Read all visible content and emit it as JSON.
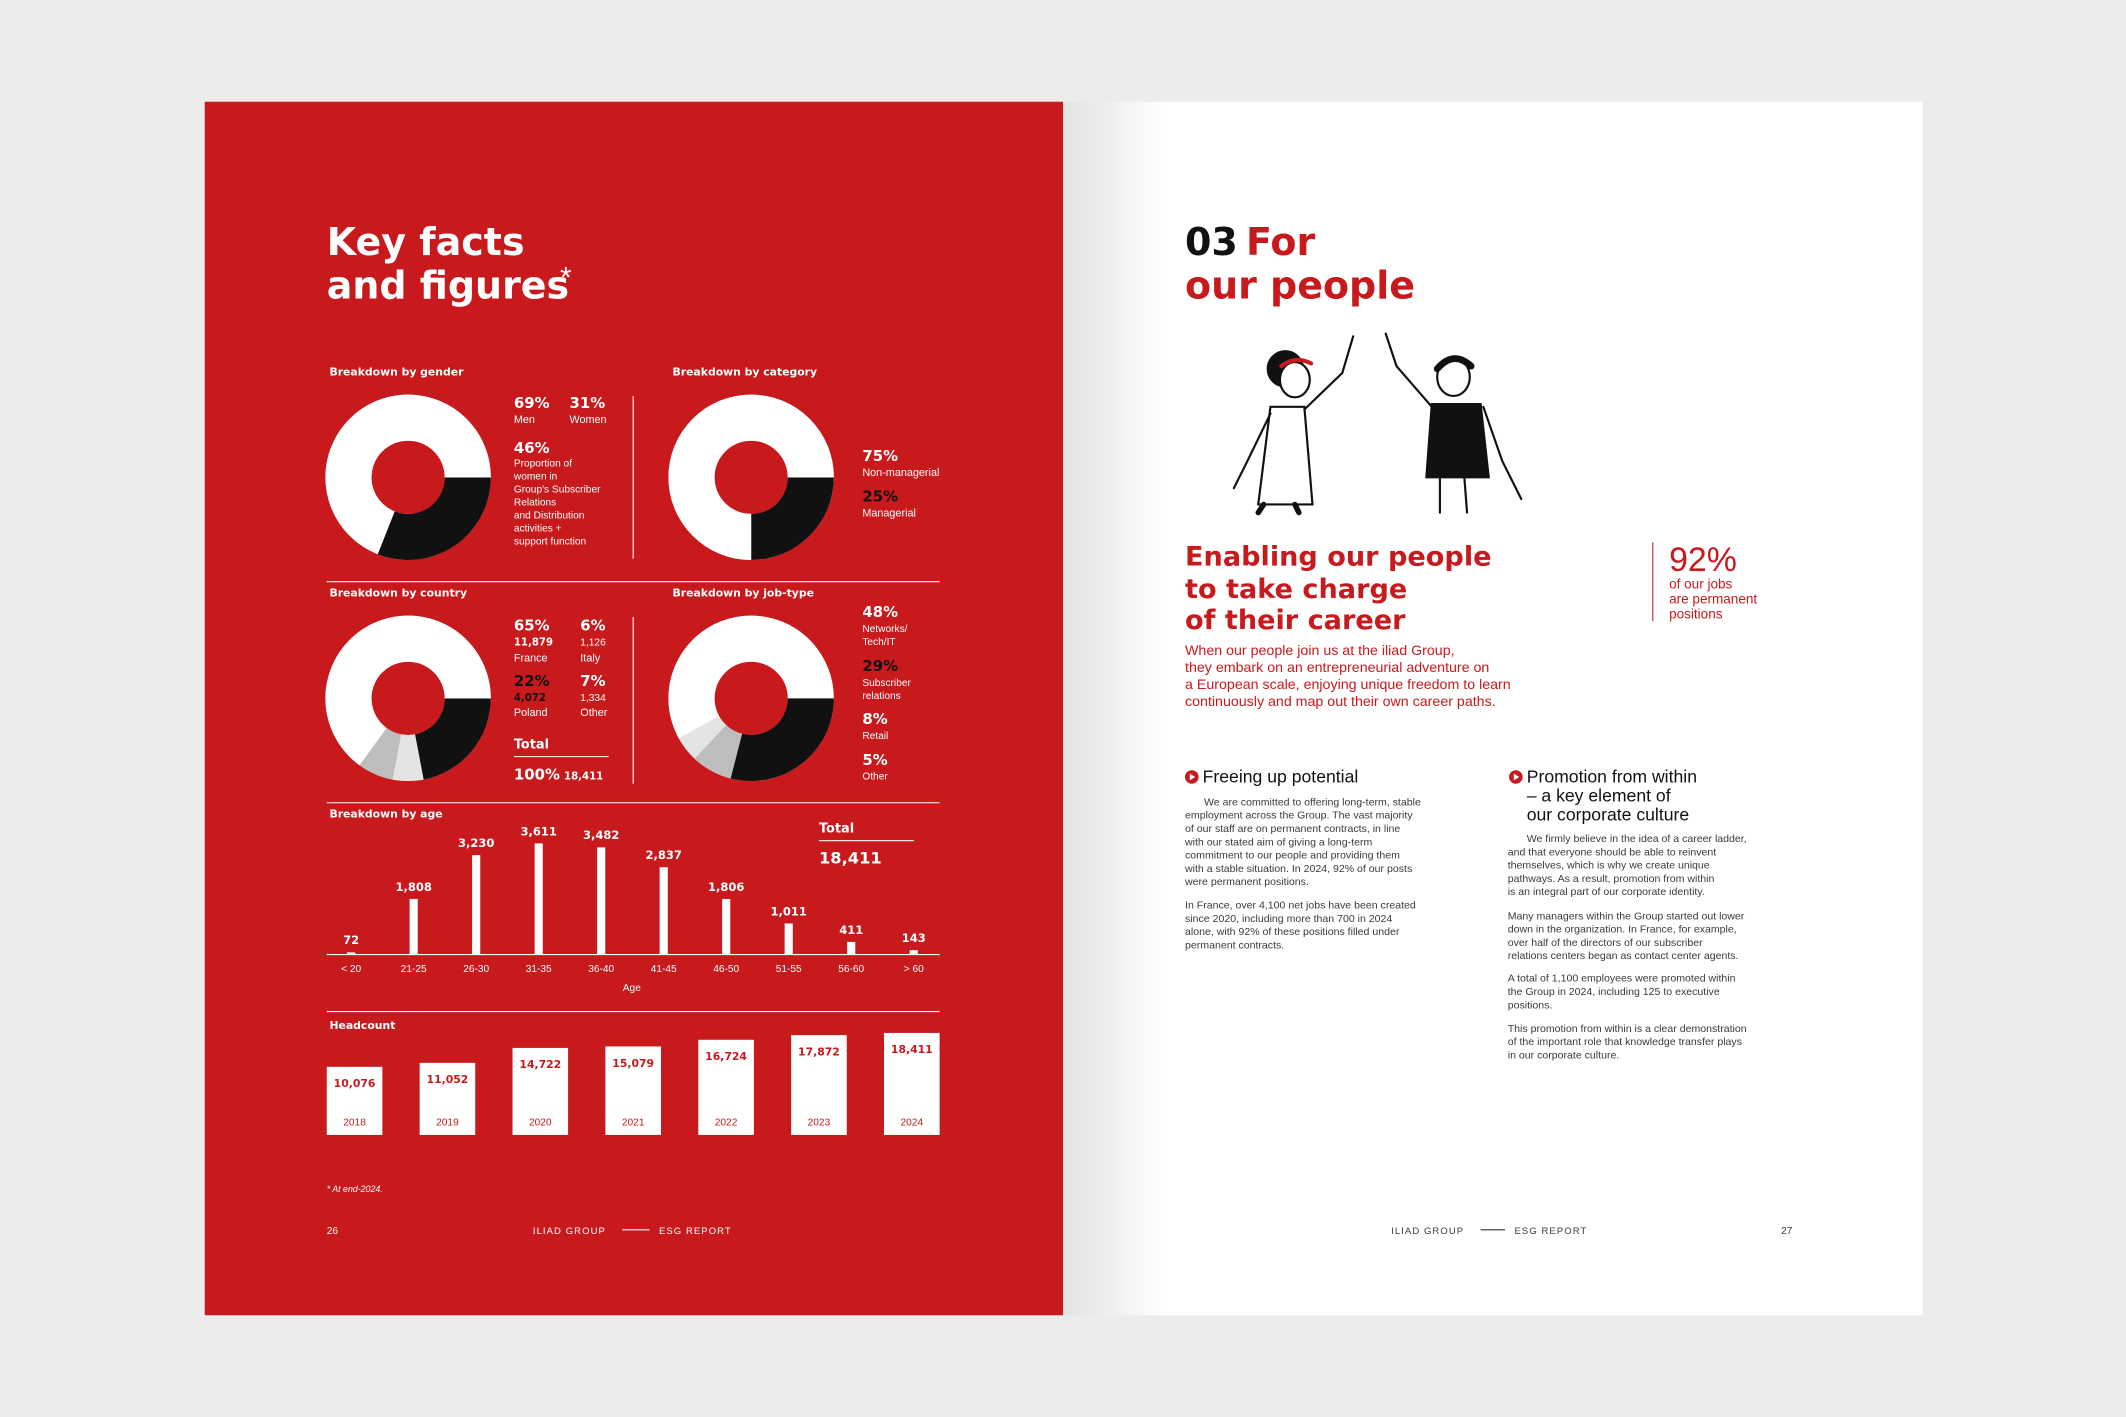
{
  "left_page": {
    "title_lines": [
      "Key facts",
      "and figures"
    ],
    "title_mark": "*",
    "gender": {
      "title": "Breakdown by gender",
      "segments": [
        {
          "name": "Men",
          "value": 69,
          "label": "69%",
          "color": "#ffffff"
        },
        {
          "name": "Women",
          "value": 31,
          "label": "31%",
          "color": "#111111"
        }
      ],
      "note_value": 46,
      "note_label": "46%",
      "note_lines": [
        "Proportion of",
        "women in",
        "Group's Subscriber",
        "Relations",
        "and Distribution",
        "activities +",
        "support function"
      ]
    },
    "category": {
      "title": "Breakdown by category",
      "segments": [
        {
          "name": "Non-managerial",
          "value": 75,
          "label": "75%",
          "color": "#ffffff"
        },
        {
          "name": "Managerial",
          "value": 25,
          "label": "25%",
          "color": "#111111"
        }
      ]
    },
    "country": {
      "title": "Breakdown by country",
      "segments": [
        {
          "name": "France",
          "value": 65,
          "label": "65%",
          "count": "11,879",
          "color": "#ffffff"
        },
        {
          "name": "Italy",
          "value": 6,
          "label": "6%",
          "count": "1,126",
          "color": "#e4e4e4"
        },
        {
          "name": "Poland",
          "value": 22,
          "label": "22%",
          "count": "4,072",
          "color": "#111111"
        },
        {
          "name": "Other",
          "value": 7,
          "label": "7%",
          "count": "1,334",
          "color": "#bdbdbd"
        }
      ],
      "total_title": "Total",
      "total_label": "100%",
      "total_count": "18,411"
    },
    "job_type": {
      "title": "Breakdown by job-type",
      "segments": [
        {
          "name_lines": [
            "Networks/",
            "Tech/IT"
          ],
          "value": 48,
          "label": "48%",
          "color": "#ffffff"
        },
        {
          "name_lines": [
            "Subscriber",
            "relations"
          ],
          "value": 29,
          "label": "29%",
          "color": "#111111"
        },
        {
          "name_lines": [
            "Retail"
          ],
          "value": 8,
          "label": "8%",
          "color": "#bdbdbd"
        },
        {
          "name_lines": [
            "Other"
          ],
          "value": 5,
          "label": "5%",
          "color": "#e4e4e4"
        }
      ]
    },
    "age": {
      "title": "Breakdown by age",
      "categories": [
        "< 20",
        "21-25",
        "26-30",
        "31-35",
        "36-40",
        "41-45",
        "46-50",
        "51-55",
        "56-60",
        "> 60"
      ],
      "values": [
        72,
        1808,
        3230,
        3611,
        3482,
        2837,
        1806,
        1011,
        411,
        143
      ],
      "value_labels": [
        "72",
        "1,808",
        "3,230",
        "3,611",
        "3,482",
        "2,837",
        "1,806",
        "1,011",
        "411",
        "143"
      ],
      "x_label": "Age",
      "total_title": "Total",
      "total_label": "18,411"
    },
    "headcount": {
      "title": "Headcount",
      "categories": [
        "2018",
        "2019",
        "2020",
        "2021",
        "2022",
        "2023",
        "2024"
      ],
      "values": [
        10076,
        11052,
        14722,
        15079,
        16724,
        17872,
        18411
      ],
      "value_labels": [
        "10,076",
        "11,052",
        "14,722",
        "15,079",
        "16,724",
        "17,872",
        "18,411"
      ]
    },
    "footnote": "* At end-2024.",
    "footer": {
      "page": "26",
      "left": "ILIAD GROUP",
      "right": "ESG REPORT"
    }
  },
  "right_page": {
    "number": "03",
    "title_first": "For",
    "title_second": "our people",
    "heading_lines": [
      "Enabling our people",
      "to take charge",
      "of their career"
    ],
    "stat": {
      "label": "92%",
      "lines": [
        "of our jobs",
        "are permanent",
        "positions"
      ]
    },
    "intro_lines": [
      "When our people join us at the iliad Group,",
      "they embark on an entrepreneurial adventure on",
      "a European scale, enjoying unique freedom to learn",
      "continuously and map out their own career paths."
    ],
    "sections": [
      {
        "title_lines": [
          "Freeing up potential"
        ],
        "paragraphs": [
          [
            "We are committed to offering long-term, stable",
            "employment across the Group. The vast majority",
            "of our staff are on permanent contracts, in line",
            "with our stated aim of giving a long-term",
            "commitment to our people and providing them",
            "with a stable situation. In 2024, 92% of our posts",
            "were permanent positions."
          ],
          [
            "In France, over 4,100 net jobs have been created",
            "since 2020, including more than 700 in 2024",
            "alone, with 92% of these positions filled under",
            "permanent contracts."
          ]
        ]
      },
      {
        "title_lines": [
          "Promotion from within",
          "– a key element of",
          "our corporate culture"
        ],
        "paragraphs": [
          [
            "We firmly believe in the idea of a career ladder,",
            "and that everyone should be able to reinvent",
            "themselves, which is why we create unique",
            "pathways. As a result, promotion from within",
            "is an integral part of our corporate identity."
          ],
          [
            "Many managers within the Group started out lower",
            "down in the organization. In France, for example,",
            "over half of the directors of our subscriber",
            "relations centers began as contact center agents."
          ],
          [
            "A total of 1,100 employees were promoted within",
            "the Group in 2024, including 125 to executive",
            "positions."
          ],
          [
            "This promotion from within is a clear demonstration",
            "of the important role that knowledge transfer plays",
            "in our corporate culture."
          ]
        ]
      }
    ],
    "footer": {
      "left": "ILIAD GROUP",
      "right": "ESG REPORT",
      "page": "27"
    }
  }
}
